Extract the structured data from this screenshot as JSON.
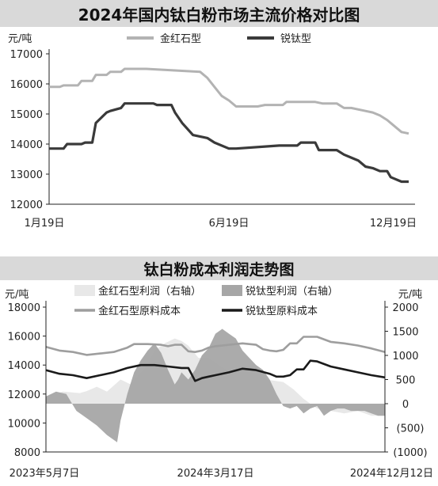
{
  "chart_data": [
    {
      "type": "line",
      "title": "2024年国内钛白粉市场主流价格对比图",
      "ylabel": "元/吨",
      "ylim": [
        12000,
        17000
      ],
      "yticks": [
        12000,
        13000,
        14000,
        15000,
        16000,
        17000
      ],
      "x_tick_labels": [
        "1月19日",
        "6月19日",
        "12月19日"
      ],
      "legend_position": "top",
      "grid": false,
      "x_range": [
        0,
        100
      ],
      "series": [
        {
          "name": "金红石型",
          "color": "#b3b3b3",
          "x": [
            0,
            3,
            4,
            8,
            9,
            12,
            13,
            16,
            17,
            20,
            21,
            26,
            27,
            42,
            44,
            46,
            48,
            50,
            52,
            58,
            60,
            65,
            66,
            74,
            76,
            80,
            82,
            84,
            88,
            90,
            92,
            94,
            96,
            98,
            100
          ],
          "values": [
            15900,
            15900,
            15950,
            15950,
            16100,
            16100,
            16300,
            16300,
            16400,
            16400,
            16500,
            16500,
            16500,
            16400,
            16200,
            15900,
            15600,
            15450,
            15250,
            15250,
            15300,
            15300,
            15400,
            15400,
            15350,
            15350,
            15200,
            15200,
            15100,
            15050,
            14950,
            14800,
            14600,
            14400,
            14350
          ]
        },
        {
          "name": "锐钛型",
          "color": "#3a3a3a",
          "x": [
            0,
            4,
            5,
            9,
            10,
            12,
            13,
            16,
            17,
            20,
            21,
            29,
            30,
            34,
            35,
            37,
            40,
            44,
            46,
            50,
            52,
            64,
            65,
            69,
            70,
            74,
            75,
            78,
            80,
            82,
            84,
            86,
            88,
            90,
            92,
            94,
            95,
            96,
            97,
            98,
            100
          ],
          "values": [
            13850,
            13850,
            14000,
            14000,
            14050,
            14050,
            14700,
            15050,
            15100,
            15200,
            15350,
            15350,
            15300,
            15300,
            15050,
            14700,
            14300,
            14200,
            14050,
            13850,
            13850,
            13950,
            13950,
            13950,
            14050,
            14050,
            13800,
            13800,
            13800,
            13650,
            13550,
            13450,
            13250,
            13200,
            13100,
            13100,
            12900,
            12850,
            12800,
            12750,
            12750
          ]
        }
      ]
    },
    {
      "type": "area",
      "title": "钛白粉成本利润走势图",
      "ylabel": "元/吨",
      "ylabel_right": "元/吨",
      "ylim": [
        8000,
        18000
      ],
      "yticks": [
        8000,
        10000,
        12000,
        14000,
        16000,
        18000
      ],
      "ylim_right": [
        -1000,
        2000
      ],
      "yticks_right": [
        2000,
        1500,
        1000,
        500,
        0
      ],
      "yticks_right_negative": [
        "(500)",
        "(1000)"
      ],
      "x_tick_labels": [
        "2023年5月7日",
        "2024年3月17日",
        "2024年12月12日"
      ],
      "legend_position": "top",
      "grid": false,
      "x_range": [
        0,
        100
      ],
      "series": [
        {
          "name": "金红石型利润（右轴）",
          "axis": "right",
          "style": "area",
          "color": "#e8e8e8",
          "x": [
            0,
            5,
            10,
            12,
            15,
            18,
            22,
            25,
            28,
            30,
            32,
            35,
            38,
            40,
            42,
            45,
            48,
            52,
            55,
            58,
            62,
            65,
            70,
            73,
            76,
            80,
            84,
            88,
            92,
            96,
            100
          ],
          "values": [
            150,
            250,
            220,
            260,
            350,
            250,
            500,
            400,
            650,
            800,
            1100,
            1250,
            1350,
            1300,
            1200,
            950,
            950,
            750,
            650,
            700,
            650,
            500,
            450,
            300,
            100,
            -100,
            -150,
            -200,
            -150,
            -250,
            -250
          ]
        },
        {
          "name": "锐钛型利润（右轴）",
          "axis": "right",
          "style": "area",
          "color": "#a6a6a6",
          "x": [
            0,
            3,
            6,
            9,
            12,
            15,
            18,
            21,
            22,
            24,
            26,
            28,
            30,
            32,
            34,
            36,
            38,
            39,
            40,
            42,
            44,
            46,
            48,
            50,
            52,
            54,
            56,
            58,
            60,
            62,
            64,
            66,
            68,
            70,
            72,
            74,
            76,
            78,
            80,
            82,
            84,
            86,
            88,
            90,
            92,
            94,
            96,
            98,
            100
          ],
          "values": [
            150,
            250,
            200,
            -150,
            -300,
            -450,
            -650,
            -800,
            -350,
            200,
            650,
            900,
            1100,
            1250,
            1050,
            700,
            400,
            500,
            650,
            500,
            700,
            1000,
            1150,
            1450,
            1550,
            1450,
            1350,
            1100,
            950,
            800,
            700,
            500,
            200,
            -50,
            -100,
            -50,
            -200,
            -100,
            -50,
            -250,
            -150,
            -100,
            -100,
            -150,
            -150,
            -150,
            -200,
            -250,
            -250
          ]
        },
        {
          "name": "金红石型原料成本",
          "axis": "left",
          "style": "line",
          "color": "#9e9e9e",
          "x": [
            0,
            4,
            8,
            12,
            16,
            20,
            24,
            26,
            30,
            34,
            36,
            38,
            40,
            42,
            44,
            46,
            48,
            50,
            54,
            58,
            62,
            64,
            66,
            68,
            70,
            72,
            74,
            76,
            80,
            84,
            88,
            92,
            96,
            100
          ],
          "values": [
            15250,
            15000,
            14900,
            14700,
            14800,
            14900,
            15200,
            15450,
            15450,
            15400,
            15300,
            15400,
            15400,
            14950,
            14900,
            15000,
            15200,
            15300,
            15400,
            15500,
            15400,
            15100,
            15000,
            14950,
            15050,
            15500,
            15500,
            15950,
            15950,
            15600,
            15500,
            15350,
            15150,
            14900
          ]
        },
        {
          "name": "锐钛型原料成本",
          "axis": "left",
          "style": "line",
          "color": "#1a1a1a",
          "x": [
            0,
            4,
            8,
            12,
            16,
            20,
            24,
            28,
            32,
            36,
            40,
            42,
            44,
            46,
            48,
            50,
            54,
            58,
            62,
            66,
            68,
            70,
            72,
            74,
            76,
            78,
            80,
            84,
            88,
            92,
            96,
            100
          ],
          "values": [
            13650,
            13400,
            13300,
            13100,
            13300,
            13500,
            13800,
            14000,
            14000,
            13900,
            13800,
            13800,
            12900,
            13100,
            13200,
            13300,
            13500,
            13750,
            13650,
            13400,
            13200,
            13200,
            13300,
            13700,
            13700,
            14300,
            14250,
            13900,
            13700,
            13500,
            13300,
            13150
          ]
        }
      ]
    }
  ]
}
